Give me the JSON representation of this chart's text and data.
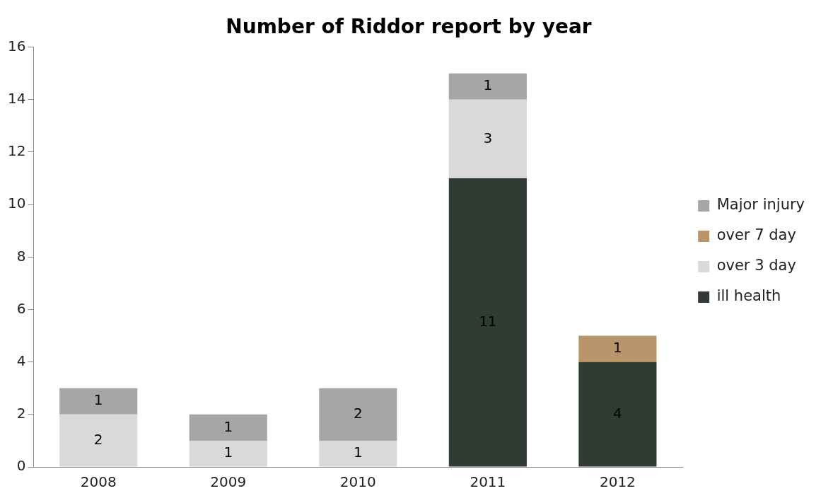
{
  "chart_data": {
    "type": "bar",
    "title": "Number of Riddor report by year",
    "categories": [
      "2008",
      "2009",
      "2010",
      "2011",
      "2012"
    ],
    "stacked": true,
    "series": [
      {
        "name": "ill health",
        "color": "#2f3b33",
        "values": [
          null,
          null,
          null,
          11,
          4
        ]
      },
      {
        "name": "over 3 day",
        "color": "#d9d9d9",
        "values": [
          2,
          1,
          1,
          3,
          null
        ]
      },
      {
        "name": "over 7 day",
        "color": "#b8956a",
        "values": [
          null,
          null,
          null,
          null,
          1
        ]
      },
      {
        "name": "Major injury",
        "color": "#a6a6a6",
        "values": [
          1,
          1,
          2,
          1,
          null
        ]
      }
    ],
    "ylim": [
      0,
      16
    ],
    "yticks": [
      0,
      2,
      4,
      6,
      8,
      10,
      12,
      14,
      16
    ],
    "grid": false,
    "legend": "right",
    "data_labels": true
  }
}
